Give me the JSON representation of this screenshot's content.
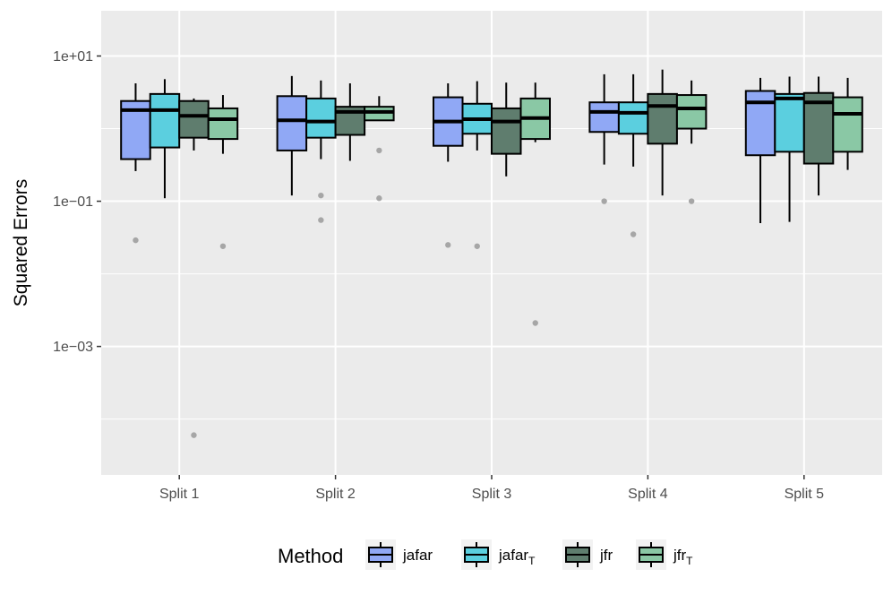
{
  "chart_data": {
    "type": "box",
    "title": "",
    "xlabel": "",
    "ylabel": "Squared Errors",
    "yscale": "log10",
    "ylim": [
      1.7e-05,
      42
    ],
    "yticks": [
      {
        "value": 10,
        "label": "1e+01"
      },
      {
        "value": 0.1,
        "label": "1e−01"
      },
      {
        "value": 0.001,
        "label": "1e−03"
      }
    ],
    "categories": [
      "Split 1",
      "Split 2",
      "Split 3",
      "Split 4",
      "Split 5"
    ],
    "legend": {
      "title": "Method",
      "position": "bottom"
    },
    "series": [
      {
        "key": "jafar",
        "label": "jafar",
        "subscript": "",
        "color": "#90A8F5",
        "boxes": [
          {
            "lower_whisker": 0.26,
            "q1": 0.38,
            "median": 1.8,
            "q3": 2.4,
            "upper_whisker": 4.2,
            "outliers": [
              0.029
            ]
          },
          {
            "lower_whisker": 0.12,
            "q1": 0.5,
            "median": 1.3,
            "q3": 2.8,
            "upper_whisker": 5.3,
            "outliers": []
          },
          {
            "lower_whisker": 0.35,
            "q1": 0.58,
            "median": 1.25,
            "q3": 2.7,
            "upper_whisker": 4.2,
            "outliers": [
              0.025
            ]
          },
          {
            "lower_whisker": 0.32,
            "q1": 0.9,
            "median": 1.7,
            "q3": 2.3,
            "upper_whisker": 5.6,
            "outliers": [
              0.1
            ]
          },
          {
            "lower_whisker": 0.05,
            "q1": 0.43,
            "median": 2.3,
            "q3": 3.3,
            "upper_whisker": 5.0,
            "outliers": []
          }
        ]
      },
      {
        "key": "jafar_T",
        "label": "jafar",
        "subscript": "T",
        "color": "#5BCFDF",
        "boxes": [
          {
            "lower_whisker": 0.11,
            "q1": 0.55,
            "median": 1.8,
            "q3": 3.0,
            "upper_whisker": 4.8,
            "outliers": []
          },
          {
            "lower_whisker": 0.38,
            "q1": 0.75,
            "median": 1.25,
            "q3": 2.6,
            "upper_whisker": 4.6,
            "outliers": [
              0.12,
              0.055
            ]
          },
          {
            "lower_whisker": 0.5,
            "q1": 0.85,
            "median": 1.35,
            "q3": 2.2,
            "upper_whisker": 4.5,
            "outliers": [
              0.024
            ]
          },
          {
            "lower_whisker": 0.3,
            "q1": 0.85,
            "median": 1.65,
            "q3": 2.3,
            "upper_whisker": 5.6,
            "outliers": [
              0.035
            ]
          },
          {
            "lower_whisker": 0.052,
            "q1": 0.48,
            "median": 2.6,
            "q3": 3.0,
            "upper_whisker": 5.2,
            "outliers": []
          }
        ]
      },
      {
        "key": "jfr",
        "label": "jfr",
        "subscript": "",
        "color": "#5F7D6E",
        "boxes": [
          {
            "lower_whisker": 0.5,
            "q1": 0.75,
            "median": 1.5,
            "q3": 2.4,
            "upper_whisker": 2.6,
            "outliers": [
              6e-05
            ]
          },
          {
            "lower_whisker": 0.36,
            "q1": 0.82,
            "median": 1.7,
            "q3": 2.0,
            "upper_whisker": 4.2,
            "outliers": []
          },
          {
            "lower_whisker": 0.22,
            "q1": 0.45,
            "median": 1.25,
            "q3": 1.9,
            "upper_whisker": 4.3,
            "outliers": []
          },
          {
            "lower_whisker": 0.12,
            "q1": 0.62,
            "median": 2.05,
            "q3": 3.0,
            "upper_whisker": 6.5,
            "outliers": []
          },
          {
            "lower_whisker": 0.12,
            "q1": 0.33,
            "median": 2.3,
            "q3": 3.1,
            "upper_whisker": 5.2,
            "outliers": []
          }
        ]
      },
      {
        "key": "jfr_T",
        "label": "jfr",
        "subscript": "T",
        "color": "#8AC8A5",
        "boxes": [
          {
            "lower_whisker": 0.45,
            "q1": 0.72,
            "median": 1.35,
            "q3": 1.9,
            "upper_whisker": 2.9,
            "outliers": [
              0.024
            ]
          },
          {
            "lower_whisker": 1.3,
            "q1": 1.3,
            "median": 1.7,
            "q3": 2.0,
            "upper_whisker": 2.8,
            "outliers": [
              0.5,
              0.11
            ]
          },
          {
            "lower_whisker": 0.65,
            "q1": 0.72,
            "median": 1.4,
            "q3": 2.6,
            "upper_whisker": 4.3,
            "outliers": [
              0.0021
            ]
          },
          {
            "lower_whisker": 0.62,
            "q1": 1.0,
            "median": 1.9,
            "q3": 2.9,
            "upper_whisker": 4.6,
            "outliers": [
              0.1
            ]
          },
          {
            "lower_whisker": 0.27,
            "q1": 0.48,
            "median": 1.6,
            "q3": 2.7,
            "upper_whisker": 5.0,
            "outliers": []
          }
        ]
      }
    ],
    "colors": {
      "panel_background": "#EBEBEB",
      "grid_major": "#FFFFFF",
      "outlier": "#A6A6A6",
      "tick_text": "#4D4D4D"
    }
  }
}
